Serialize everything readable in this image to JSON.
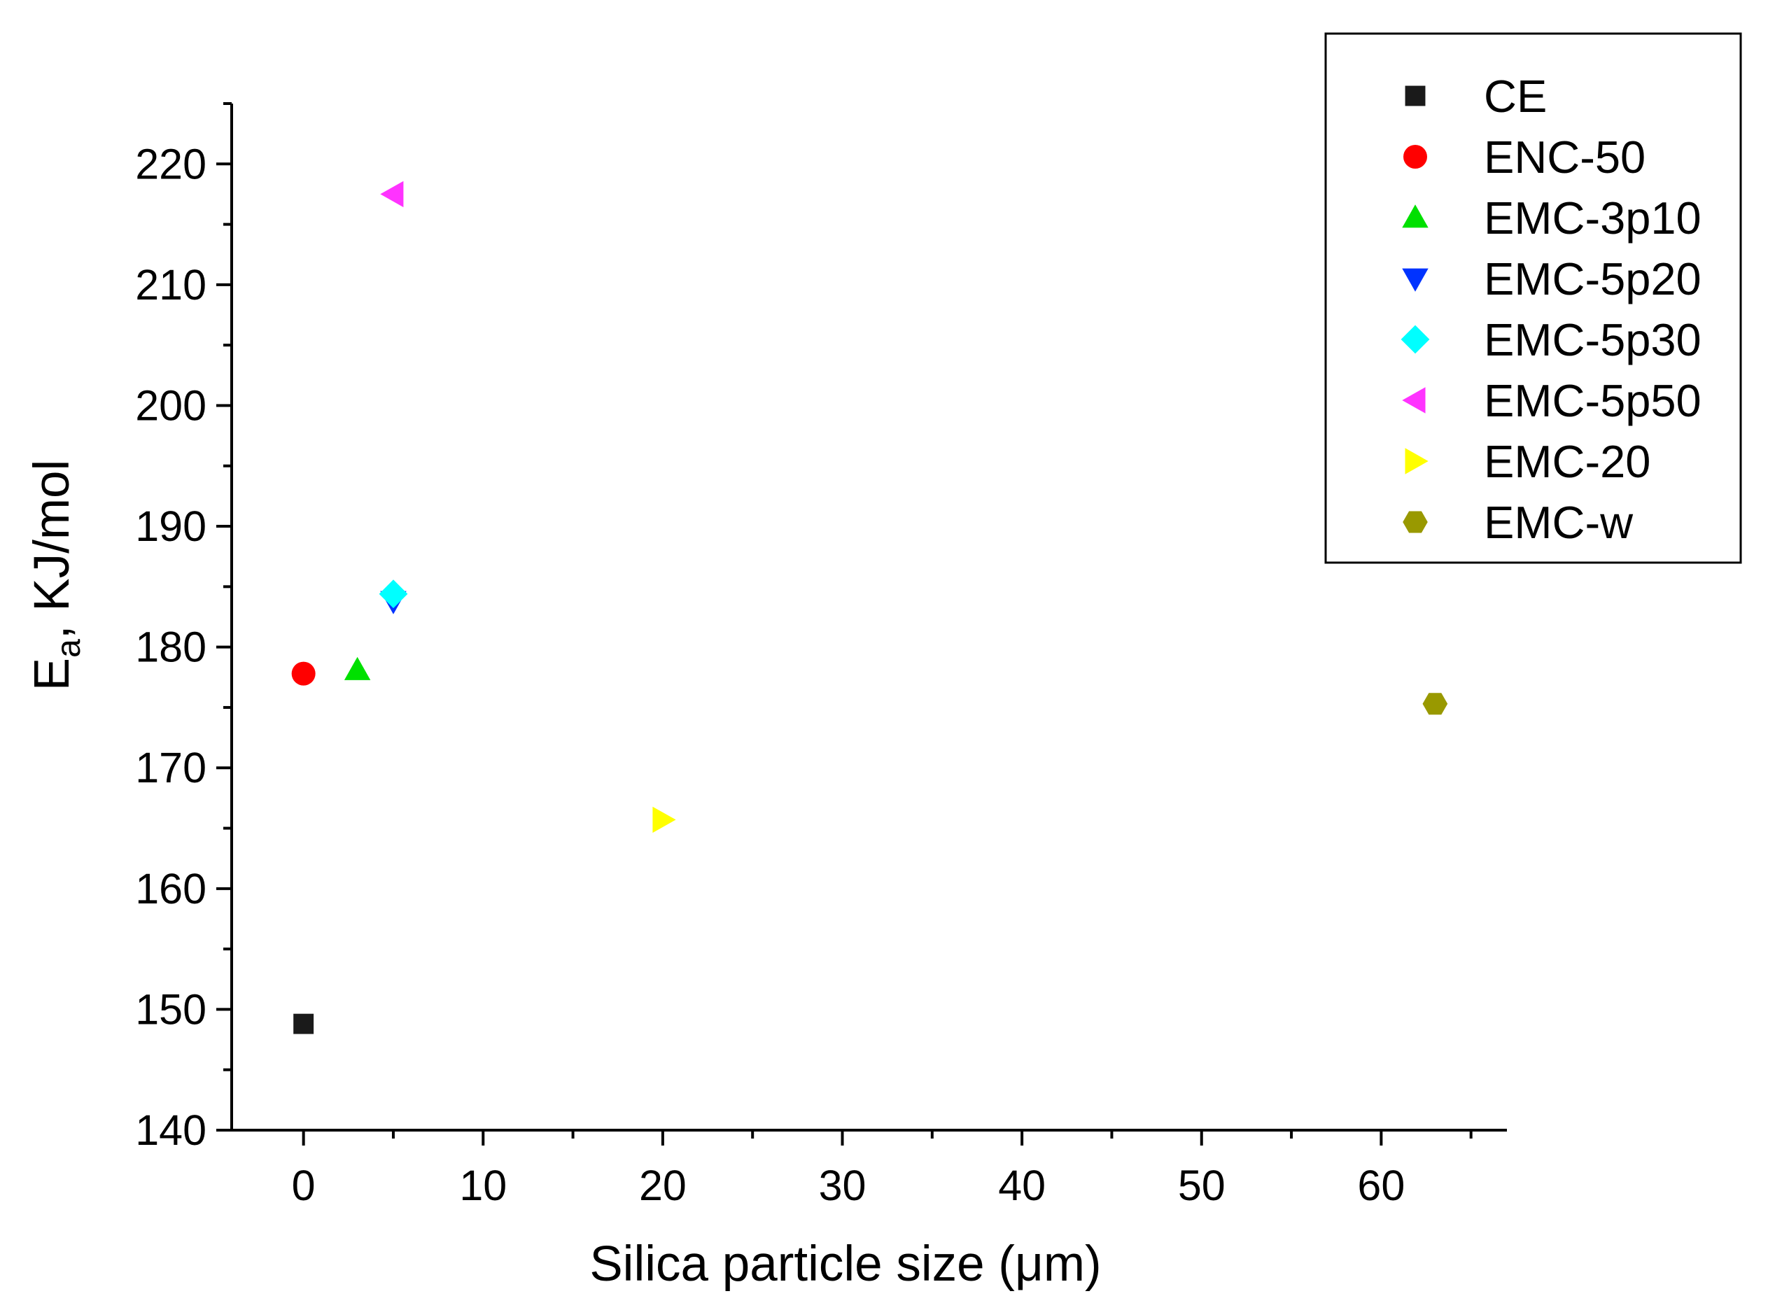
{
  "chart_data": {
    "type": "scatter",
    "title": "",
    "xlabel": "Silica particle size (μm)",
    "ylabel": {
      "main": "E",
      "subscript": "a",
      "suffix": ", KJ/mol"
    },
    "xlim": [
      -4,
      67
    ],
    "ylim": [
      140,
      225
    ],
    "x_ticks": [
      0,
      10,
      20,
      30,
      40,
      50,
      60
    ],
    "x_tick_labels": [
      "0",
      "10",
      "20",
      "30",
      "40",
      "50",
      "60"
    ],
    "x_minor_ticks": [
      5,
      15,
      25,
      35,
      45,
      55,
      65
    ],
    "y_ticks": [
      140,
      150,
      160,
      170,
      180,
      190,
      200,
      210,
      220
    ],
    "y_tick_labels": [
      "140",
      "150",
      "160",
      "170",
      "180",
      "190",
      "200",
      "210",
      "220"
    ],
    "y_minor_ticks": [
      145,
      155,
      165,
      175,
      185,
      195,
      205,
      215,
      225
    ],
    "grid": false,
    "legend_position": "top-right",
    "series": [
      {
        "name": "CE",
        "x": 0,
        "y": 148.8,
        "marker": "square",
        "color": "#1a1a1a"
      },
      {
        "name": "ENC-50",
        "x": 0,
        "y": 177.8,
        "marker": "circle",
        "color": "#ff0000"
      },
      {
        "name": "EMC-3p10",
        "x": 3,
        "y": 178.1,
        "marker": "triangle-up",
        "color": "#00e000"
      },
      {
        "name": "EMC-5p20",
        "x": 5,
        "y": 183.8,
        "marker": "triangle-down",
        "color": "#0033ff"
      },
      {
        "name": "EMC-5p30",
        "x": 5,
        "y": 184.4,
        "marker": "diamond",
        "color": "#00ffff"
      },
      {
        "name": "EMC-5p50",
        "x": 5,
        "y": 217.5,
        "marker": "triangle-left",
        "color": "#ff33ff"
      },
      {
        "name": "EMC-20",
        "x": 20,
        "y": 165.7,
        "marker": "triangle-right",
        "color": "#ffff00"
      },
      {
        "name": "EMC-w",
        "x": 63,
        "y": 175.3,
        "marker": "hexagon",
        "color": "#999900"
      }
    ]
  }
}
